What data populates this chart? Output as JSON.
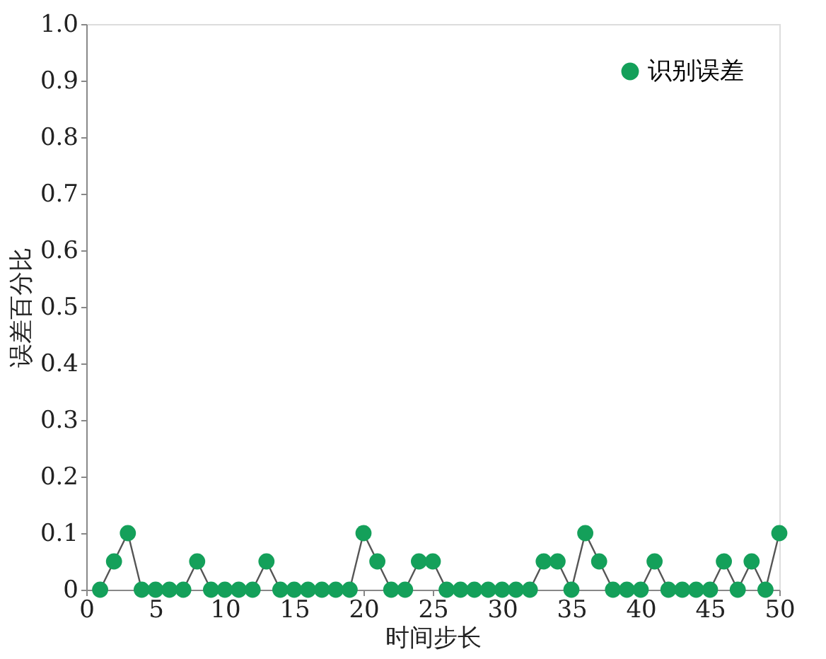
{
  "chart_data": {
    "type": "line",
    "xlabel": "时间步长",
    "ylabel": "误差百分比",
    "x": [
      1,
      2,
      3,
      4,
      5,
      6,
      7,
      8,
      9,
      10,
      11,
      12,
      13,
      14,
      15,
      16,
      17,
      18,
      19,
      20,
      21,
      22,
      23,
      24,
      25,
      26,
      27,
      28,
      29,
      30,
      31,
      32,
      33,
      34,
      35,
      36,
      37,
      38,
      39,
      40,
      41,
      42,
      43,
      44,
      45,
      46,
      47,
      48,
      49,
      50
    ],
    "series": [
      {
        "name": "识别误差",
        "color": "#14a05a",
        "values": [
          0,
          0.05,
          0.1,
          0,
          0,
          0,
          0,
          0.05,
          0,
          0,
          0,
          0,
          0.05,
          0,
          0,
          0,
          0,
          0,
          0,
          0.1,
          0.05,
          0,
          0,
          0.05,
          0.05,
          0,
          0,
          0,
          0,
          0,
          0,
          0,
          0.05,
          0.05,
          0,
          0.1,
          0.05,
          0,
          0,
          0,
          0.05,
          0,
          0,
          0,
          0,
          0.05,
          0,
          0.05,
          0,
          0.1
        ]
      }
    ],
    "xlim": [
      0,
      50
    ],
    "ylim": [
      0,
      1
    ],
    "xticks": [
      0,
      5,
      10,
      15,
      20,
      25,
      30,
      35,
      40,
      45,
      50
    ],
    "yticks": [
      0,
      0.1,
      0.2,
      0.3,
      0.4,
      0.5,
      0.6,
      0.7,
      0.8,
      0.9,
      {
        "value": 1,
        "label": "1.0"
      }
    ],
    "legend": "top right",
    "marker": "circle",
    "line_style": "solid",
    "grid": false
  }
}
